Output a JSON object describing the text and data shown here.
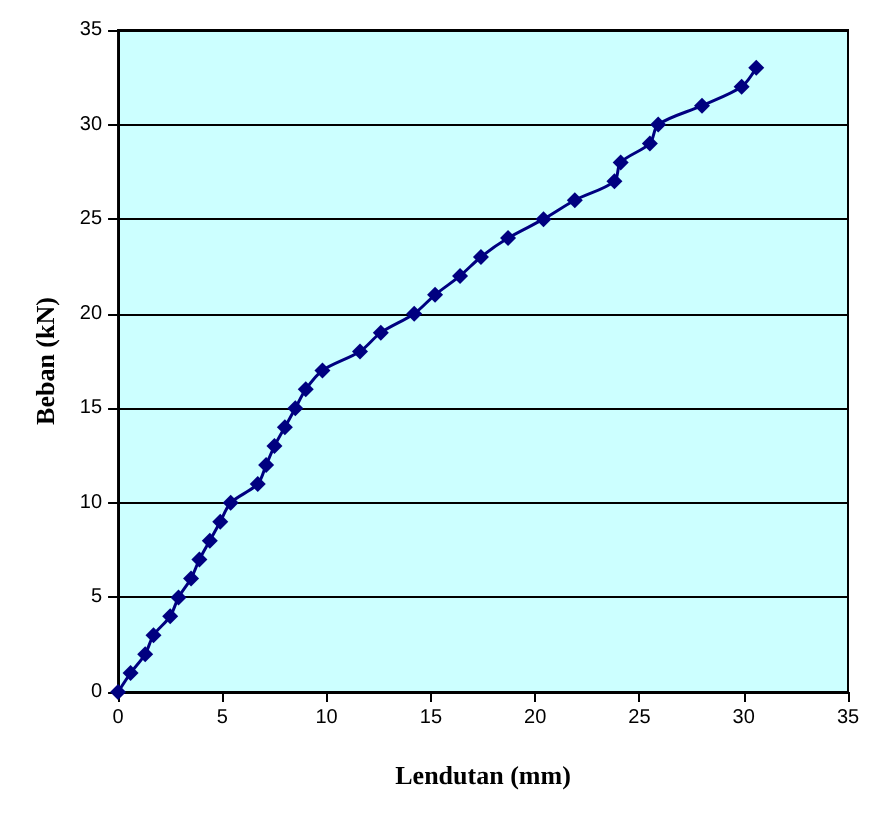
{
  "chart_data": {
    "type": "line",
    "xlabel": "Lendutan (mm)",
    "ylabel": "Beban (kN)",
    "x": [
      0,
      0.6,
      1.3,
      1.7,
      2.5,
      2.9,
      3.5,
      3.9,
      4.4,
      4.9,
      5.4,
      6.7,
      7.1,
      7.5,
      8.0,
      8.5,
      9.0,
      9.8,
      11.6,
      12.6,
      14.2,
      15.2,
      16.4,
      17.4,
      18.7,
      20.4,
      21.9,
      23.8,
      24.1,
      25.5,
      25.9,
      28.0,
      29.9,
      30.6
    ],
    "series": [
      {
        "color": "#000080",
        "values": [
          0,
          1,
          2,
          3,
          4,
          5,
          6,
          7,
          8,
          9,
          10,
          11,
          12,
          13,
          14,
          15,
          16,
          17,
          18,
          19,
          20,
          21,
          22,
          23,
          24,
          25,
          26,
          27,
          28,
          29,
          30,
          31,
          32,
          33
        ]
      }
    ],
    "xlim": [
      0,
      35
    ],
    "ylim": [
      0,
      35
    ],
    "xticks": [
      0,
      5,
      10,
      15,
      20,
      25,
      30,
      35
    ],
    "yticks": [
      0,
      5,
      10,
      15,
      20,
      25,
      30,
      35
    ],
    "grid": "y",
    "marker": "diamond",
    "line_style": "solid"
  }
}
